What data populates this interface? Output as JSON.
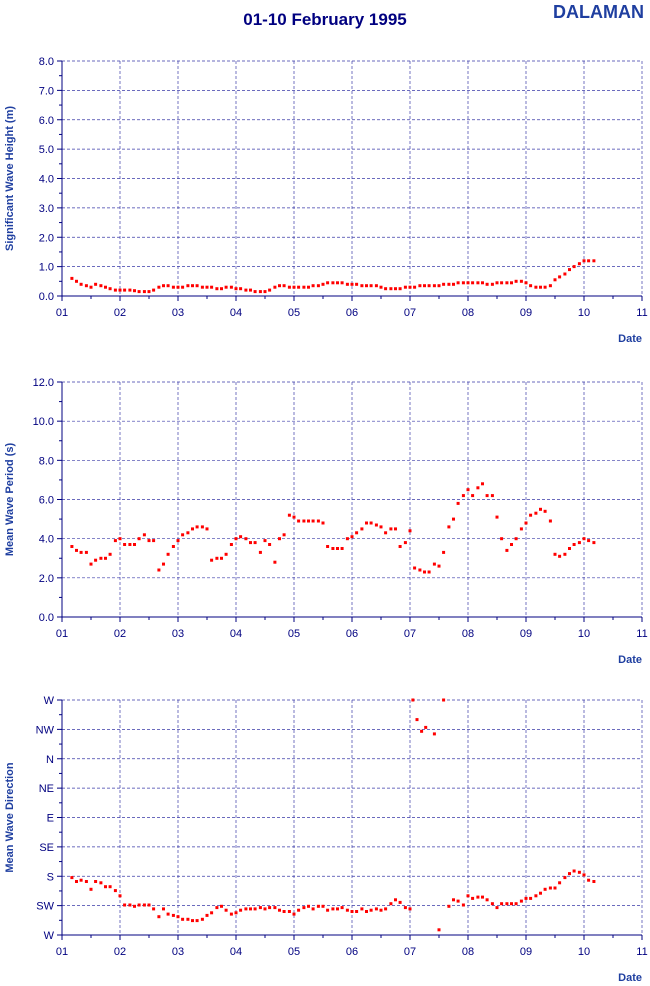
{
  "header": {
    "title": "01-10 February 1995",
    "station": "DALAMAN"
  },
  "chart_data": [
    {
      "type": "scatter",
      "ylabel": "Significant Wave Height (m)",
      "xlabel": "Date",
      "xlim": [
        1,
        11
      ],
      "ylim": [
        0,
        8
      ],
      "x_ticks": [
        "01",
        "02",
        "03",
        "04",
        "05",
        "06",
        "07",
        "08",
        "09",
        "10",
        "11"
      ],
      "y_ticks": [
        "0.0",
        "1.0",
        "2.0",
        "3.0",
        "4.0",
        "5.0",
        "6.0",
        "7.0",
        "8.0"
      ],
      "grid": true,
      "series": [
        {
          "color": "#ff0000",
          "x": [
            1.17,
            1.25,
            1.33,
            1.42,
            1.5,
            1.58,
            1.67,
            1.75,
            1.83,
            1.92,
            2.0,
            2.08,
            2.17,
            2.25,
            2.33,
            2.42,
            2.5,
            2.58,
            2.67,
            2.75,
            2.83,
            2.92,
            3.0,
            3.08,
            3.17,
            3.25,
            3.33,
            3.42,
            3.5,
            3.58,
            3.67,
            3.75,
            3.83,
            3.92,
            4.0,
            4.08,
            4.17,
            4.25,
            4.33,
            4.42,
            4.5,
            4.58,
            4.67,
            4.75,
            4.83,
            4.92,
            5.0,
            5.08,
            5.17,
            5.25,
            5.33,
            5.42,
            5.5,
            5.58,
            5.67,
            5.75,
            5.83,
            5.92,
            6.0,
            6.08,
            6.17,
            6.25,
            6.33,
            6.42,
            6.5,
            6.58,
            6.67,
            6.75,
            6.83,
            6.92,
            7.0,
            7.08,
            7.17,
            7.25,
            7.33,
            7.42,
            7.5,
            7.58,
            7.67,
            7.75,
            7.83,
            7.92,
            8.0,
            8.08,
            8.17,
            8.25,
            8.33,
            8.42,
            8.5,
            8.58,
            8.67,
            8.75,
            8.83,
            8.92,
            9.0,
            9.08,
            9.17,
            9.25,
            9.33,
            9.42,
            9.5,
            9.58,
            9.67,
            9.75,
            9.83,
            9.92,
            10.0,
            10.08,
            10.17
          ],
          "y": [
            0.6,
            0.5,
            0.4,
            0.35,
            0.3,
            0.4,
            0.35,
            0.3,
            0.25,
            0.2,
            0.2,
            0.2,
            0.2,
            0.18,
            0.15,
            0.15,
            0.15,
            0.2,
            0.3,
            0.35,
            0.35,
            0.3,
            0.3,
            0.3,
            0.35,
            0.35,
            0.35,
            0.3,
            0.3,
            0.3,
            0.25,
            0.25,
            0.3,
            0.3,
            0.25,
            0.25,
            0.2,
            0.2,
            0.15,
            0.15,
            0.15,
            0.2,
            0.3,
            0.35,
            0.35,
            0.3,
            0.3,
            0.3,
            0.3,
            0.3,
            0.35,
            0.35,
            0.4,
            0.45,
            0.45,
            0.45,
            0.45,
            0.4,
            0.4,
            0.4,
            0.35,
            0.35,
            0.35,
            0.35,
            0.3,
            0.25,
            0.25,
            0.25,
            0.25,
            0.3,
            0.3,
            0.3,
            0.35,
            0.35,
            0.35,
            0.35,
            0.35,
            0.4,
            0.4,
            0.4,
            0.45,
            0.45,
            0.45,
            0.45,
            0.45,
            0.45,
            0.4,
            0.4,
            0.45,
            0.45,
            0.45,
            0.45,
            0.5,
            0.5,
            0.45,
            0.35,
            0.3,
            0.3,
            0.3,
            0.35,
            0.55,
            0.65,
            0.75,
            0.9,
            1.0,
            1.1,
            1.2,
            1.2,
            1.2
          ]
        }
      ]
    },
    {
      "type": "scatter",
      "ylabel": "Mean Wave Period (s)",
      "xlabel": "Date",
      "xlim": [
        1,
        11
      ],
      "ylim": [
        0,
        12
      ],
      "x_ticks": [
        "01",
        "02",
        "03",
        "04",
        "05",
        "06",
        "07",
        "08",
        "09",
        "10",
        "11"
      ],
      "y_ticks": [
        "0.0",
        "2.0",
        "4.0",
        "6.0",
        "8.0",
        "10.0",
        "12.0"
      ],
      "grid": true,
      "series": [
        {
          "color": "#ff0000",
          "x": [
            1.17,
            1.25,
            1.33,
            1.42,
            1.5,
            1.58,
            1.67,
            1.75,
            1.83,
            1.92,
            2.0,
            2.08,
            2.17,
            2.25,
            2.33,
            2.42,
            2.5,
            2.58,
            2.67,
            2.75,
            2.83,
            2.92,
            3.0,
            3.08,
            3.17,
            3.25,
            3.33,
            3.42,
            3.5,
            3.58,
            3.67,
            3.75,
            3.83,
            3.92,
            4.0,
            4.08,
            4.17,
            4.25,
            4.33,
            4.42,
            4.5,
            4.58,
            4.67,
            4.75,
            4.83,
            4.92,
            5.0,
            5.08,
            5.17,
            5.25,
            5.33,
            5.42,
            5.5,
            5.58,
            5.67,
            5.75,
            5.83,
            5.92,
            6.0,
            6.08,
            6.17,
            6.25,
            6.33,
            6.42,
            6.5,
            6.58,
            6.67,
            6.75,
            6.83,
            6.92,
            7.0,
            7.08,
            7.17,
            7.25,
            7.33,
            7.42,
            7.5,
            7.58,
            7.67,
            7.75,
            7.83,
            7.92,
            8.0,
            8.08,
            8.17,
            8.25,
            8.33,
            8.42,
            8.5,
            8.58,
            8.67,
            8.75,
            8.83,
            8.92,
            9.0,
            9.08,
            9.17,
            9.25,
            9.33,
            9.42,
            9.5,
            9.58,
            9.67,
            9.75,
            9.83,
            9.92,
            10.0,
            10.08,
            10.17
          ],
          "y": [
            3.6,
            3.4,
            3.3,
            3.3,
            2.7,
            2.9,
            3.0,
            3.0,
            3.2,
            3.9,
            4.0,
            3.7,
            3.7,
            3.7,
            4.0,
            4.2,
            3.9,
            3.9,
            2.4,
            2.7,
            3.2,
            3.6,
            3.9,
            4.2,
            4.3,
            4.5,
            4.6,
            4.6,
            4.5,
            2.9,
            3.0,
            3.0,
            3.2,
            3.7,
            4.0,
            4.1,
            4.0,
            3.8,
            3.8,
            3.3,
            3.9,
            3.7,
            2.8,
            4.0,
            4.2,
            5.2,
            5.1,
            4.9,
            4.9,
            4.9,
            4.9,
            4.9,
            4.8,
            3.6,
            3.5,
            3.5,
            3.5,
            4.0,
            4.1,
            4.3,
            4.5,
            4.8,
            4.8,
            4.7,
            4.6,
            4.3,
            4.5,
            4.5,
            3.6,
            3.8,
            4.4,
            2.5,
            2.4,
            2.3,
            2.3,
            2.7,
            2.6,
            3.3,
            4.6,
            5.0,
            5.8,
            6.2,
            6.5,
            6.2,
            6.6,
            6.8,
            6.2,
            6.2,
            5.1,
            4.0,
            3.4,
            3.7,
            4.0,
            4.5,
            4.8,
            5.2,
            5.3,
            5.5,
            5.4,
            4.9,
            3.2,
            3.1,
            3.2,
            3.5,
            3.7,
            3.8,
            4.0,
            3.9,
            3.8
          ]
        }
      ]
    },
    {
      "type": "scatter",
      "ylabel": "Mean Wave Direction",
      "xlabel": "Date",
      "xlim": [
        1,
        11
      ],
      "ylim": [
        90,
        270
      ],
      "x_ticks": [
        "01",
        "02",
        "03",
        "04",
        "05",
        "06",
        "07",
        "08",
        "09",
        "10",
        "11"
      ],
      "y_ticks": [
        "W",
        "SW",
        "S",
        "SE",
        "E",
        "NE",
        "N",
        "NW",
        "W"
      ],
      "grid": true,
      "series": [
        {
          "color": "#ff0000",
          "x": [
            1.17,
            1.25,
            1.33,
            1.42,
            1.5,
            1.58,
            1.67,
            1.75,
            1.83,
            1.92,
            2.0,
            2.08,
            2.17,
            2.25,
            2.33,
            2.42,
            2.5,
            2.58,
            2.67,
            2.75,
            2.83,
            2.92,
            3.0,
            3.08,
            3.17,
            3.25,
            3.33,
            3.42,
            3.5,
            3.58,
            3.67,
            3.75,
            3.83,
            3.92,
            4.0,
            4.08,
            4.17,
            4.25,
            4.33,
            4.42,
            4.5,
            4.58,
            4.67,
            4.75,
            4.83,
            4.92,
            5.0,
            5.08,
            5.17,
            5.25,
            5.33,
            5.42,
            5.5,
            5.58,
            5.67,
            5.75,
            5.83,
            5.92,
            6.0,
            6.08,
            6.17,
            6.25,
            6.33,
            6.42,
            6.5,
            6.58,
            6.67,
            6.75,
            6.83,
            6.92,
            7.0,
            7.05,
            7.12,
            7.2,
            7.27,
            7.42,
            7.5,
            7.58,
            7.67,
            7.75,
            7.83,
            7.92,
            8.0,
            8.08,
            8.17,
            8.25,
            8.33,
            8.42,
            8.5,
            8.58,
            8.67,
            8.75,
            8.83,
            8.92,
            9.0,
            9.08,
            9.17,
            9.25,
            9.33,
            9.42,
            9.5,
            9.58,
            9.67,
            9.75,
            9.83,
            9.92,
            10.0,
            10.08,
            10.17
          ],
          "y": [
            134,
            131,
            132,
            131,
            125,
            131,
            130,
            127,
            127,
            124,
            120,
            113,
            113,
            112,
            113,
            113,
            113,
            110,
            104,
            110,
            106,
            105,
            104,
            102,
            102,
            101,
            101,
            102,
            105,
            107,
            111,
            112,
            109,
            106,
            107,
            109,
            110,
            110,
            110,
            111,
            110,
            111,
            111,
            109,
            108,
            108,
            106,
            109,
            111,
            112,
            110,
            112,
            112,
            109,
            110,
            110,
            111,
            109,
            108,
            108,
            110,
            108,
            109,
            110,
            109,
            110,
            114,
            117,
            115,
            111,
            110,
            270,
            255,
            246,
            249,
            244,
            94,
            270,
            112,
            117,
            116,
            113,
            120,
            118,
            119,
            119,
            117,
            114,
            111,
            114,
            114,
            114,
            114,
            116,
            118,
            118,
            120,
            122,
            125,
            126,
            126,
            130,
            134,
            137,
            139,
            138,
            136,
            132,
            131
          ]
        }
      ]
    }
  ]
}
